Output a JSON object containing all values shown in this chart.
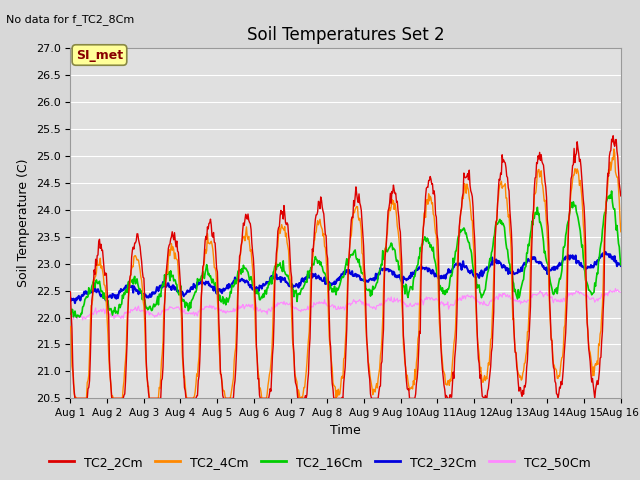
{
  "title": "Soil Temperatures Set 2",
  "subtitle": "No data for f_TC2_8Cm",
  "xlabel": "Time",
  "ylabel": "Soil Temperature (C)",
  "ylim": [
    20.5,
    27.0
  ],
  "xlim": [
    0,
    15
  ],
  "xtick_labels": [
    "Aug 1",
    "Aug 2",
    "Aug 3",
    "Aug 4",
    "Aug 5",
    "Aug 6",
    "Aug 7",
    "Aug 8",
    "Aug 9",
    "Aug 10",
    "Aug 11",
    "Aug 12",
    "Aug 13",
    "Aug 14",
    "Aug 15",
    "Aug 16"
  ],
  "ytick_values": [
    20.5,
    21.0,
    21.5,
    22.0,
    22.5,
    23.0,
    23.5,
    24.0,
    24.5,
    25.0,
    25.5,
    26.0,
    26.5,
    27.0
  ],
  "legend_label": "SI_met",
  "series_colors": {
    "TC2_2Cm": "#dd0000",
    "TC2_4Cm": "#ff8800",
    "TC2_16Cm": "#00cc00",
    "TC2_32Cm": "#0000dd",
    "TC2_50Cm": "#ff88ff"
  },
  "series_labels": [
    "TC2_2Cm",
    "TC2_4Cm",
    "TC2_16Cm",
    "TC2_32Cm",
    "TC2_50Cm"
  ],
  "background_color": "#d8d8d8",
  "plot_bg_color": "#e0e0e0",
  "grid_color": "#ffffff",
  "annotation_box_facecolor": "#ffff99",
  "annotation_box_edgecolor": "#888844",
  "annotation_text_color": "#880000",
  "title_fontsize": 12,
  "axis_label_fontsize": 9,
  "tick_fontsize": 8,
  "legend_fontsize": 9
}
